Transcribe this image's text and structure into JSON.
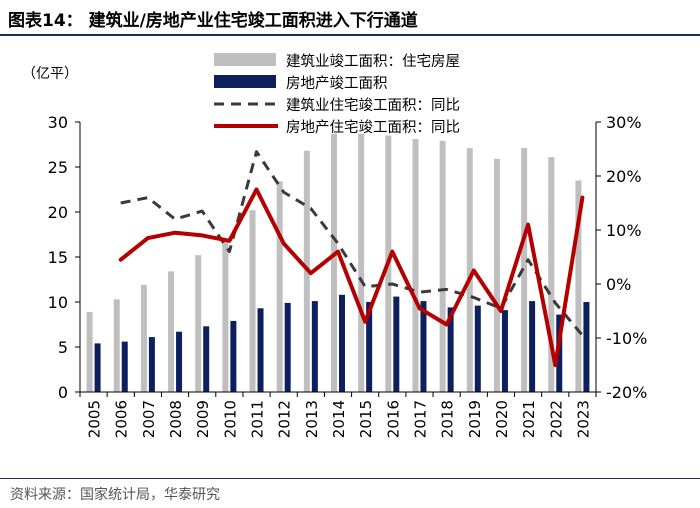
{
  "header": {
    "title": "图表14：  建筑业/房地产业住宅竣工面积进入下行通道"
  },
  "footer": {
    "source": "资料来源：国家统计局，华泰研究"
  },
  "colors": {
    "bar_construction": "#bfbfbf",
    "bar_realestate": "#0d1f5c",
    "line_construction": "#3a3a3a",
    "line_realestate": "#b40000",
    "accent_rule": "#1b2f5e"
  },
  "chart_data": {
    "type": "bar",
    "categories": [
      "2005",
      "2006",
      "2007",
      "2008",
      "2009",
      "2010",
      "2011",
      "2012",
      "2013",
      "2014",
      "2015",
      "2016",
      "2017",
      "2018",
      "2019",
      "2020",
      "2021",
      "2022",
      "2023"
    ],
    "ylabel": "（亿平）",
    "ylim": [
      0,
      30
    ],
    "yticks": [
      "0",
      "5",
      "10",
      "15",
      "20",
      "25",
      "30"
    ],
    "y2lim": [
      -20,
      30
    ],
    "y2ticks": [
      "-20%",
      "-10%",
      "0%",
      "10%",
      "20%",
      "30%"
    ],
    "legend_position": "top",
    "series": [
      {
        "name": "建筑业竣工面积：住宅房屋",
        "kind": "bar",
        "axis": "left",
        "values": [
          8.9,
          10.3,
          11.9,
          13.4,
          15.2,
          16.9,
          20.2,
          23.4,
          26.8,
          28.7,
          28.7,
          28.5,
          28.1,
          27.9,
          27.1,
          25.9,
          27.1,
          26.1,
          23.5
        ]
      },
      {
        "name": "房地产竣工面积",
        "kind": "bar",
        "axis": "left",
        "values": [
          5.4,
          5.6,
          6.1,
          6.7,
          7.3,
          7.9,
          9.3,
          9.9,
          10.1,
          10.8,
          10.0,
          10.6,
          10.1,
          9.4,
          9.6,
          9.1,
          10.1,
          8.6,
          10.0
        ]
      },
      {
        "name": "建筑业住宅竣工面积：同比",
        "kind": "line",
        "axis": "right",
        "style": "dashed",
        "values": [
          null,
          15,
          16,
          12,
          13.5,
          6,
          24.5,
          17,
          14,
          7.5,
          -0.5,
          0,
          -1.5,
          -1,
          -2.5,
          -4.5,
          4.5,
          -3.5,
          -9.5
        ]
      },
      {
        "name": "房地产住宅竣工面积：同比",
        "kind": "line",
        "axis": "right",
        "style": "solid",
        "values": [
          null,
          4.5,
          8.5,
          9.5,
          9,
          8,
          17.5,
          7.5,
          2,
          6,
          -7,
          6,
          -4.5,
          -7.5,
          2.5,
          -5,
          11,
          -15,
          16
        ]
      }
    ]
  }
}
